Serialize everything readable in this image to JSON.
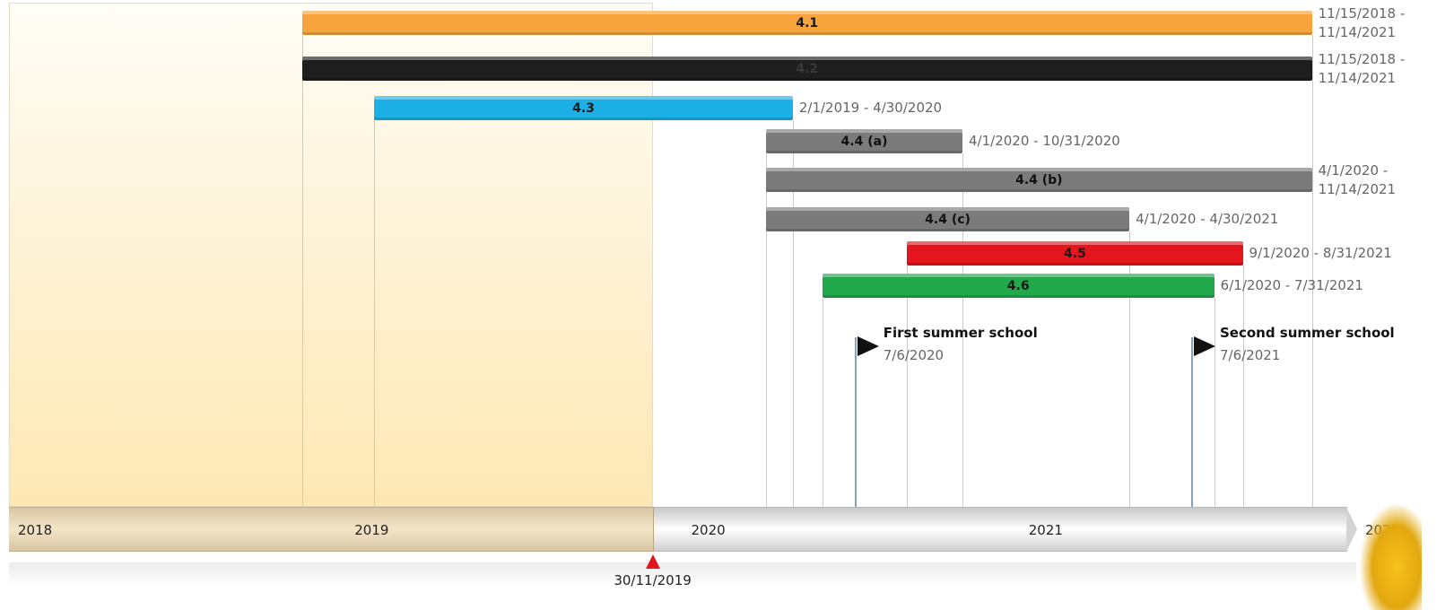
{
  "chart_data": {
    "type": "gantt",
    "xlim": [
      "1/1/2018",
      "1/1/2022"
    ],
    "xticks": [
      {
        "value": "1/1/2018",
        "label": "2018"
      },
      {
        "value": "1/1/2019",
        "label": "2019"
      },
      {
        "value": "1/1/2020",
        "label": "2020"
      },
      {
        "value": "1/1/2021",
        "label": "2021"
      },
      {
        "value": "1/1/2022",
        "label": "2022"
      }
    ],
    "tasks": [
      {
        "name": "4.1",
        "start": "11/15/2018",
        "end": "11/14/2021",
        "label": "11/15/2018 - 11/14/2021",
        "color": "#f8a43c",
        "text_color": "#1a1a1a"
      },
      {
        "name": "4.2",
        "start": "11/15/2018",
        "end": "11/14/2021",
        "label": "11/15/2018 - 11/14/2021",
        "color": "#1e1e1e",
        "text_color": "#3a3a3a"
      },
      {
        "name": "4.3",
        "start": "2/1/2019",
        "end": "4/30/2020",
        "label": "2/1/2019 - 4/30/2020",
        "color": "#1cb0e6",
        "text_color": "#1a1a1a"
      },
      {
        "name": "4.4 (a)",
        "start": "4/1/2020",
        "end": "10/31/2020",
        "label": "4/1/2020 - 10/31/2020",
        "color": "#7b7b7b",
        "text_color": "#111111"
      },
      {
        "name": "4.4 (b)",
        "start": "4/1/2020",
        "end": "11/14/2021",
        "label": "4/1/2020 - 11/14/2021",
        "color": "#7b7b7b",
        "text_color": "#111111"
      },
      {
        "name": "4.4 (c)",
        "start": "4/1/2020",
        "end": "4/30/2021",
        "label": "4/1/2020 - 4/30/2021",
        "color": "#7b7b7b",
        "text_color": "#111111"
      },
      {
        "name": "4.5",
        "start": "9/1/2020",
        "end": "8/31/2021",
        "label": "9/1/2020 - 8/31/2021",
        "color": "#e3161d",
        "text_color": "#1a1a1a"
      },
      {
        "name": "4.6",
        "start": "6/1/2020",
        "end": "7/31/2021",
        "label": "6/1/2020 - 7/31/2021",
        "color": "#20a84a",
        "text_color": "#1a1a1a"
      }
    ],
    "milestones": [
      {
        "name": "First summer school",
        "date": "7/6/2020",
        "label": "7/6/2020"
      },
      {
        "name": "Second summer school",
        "date": "7/6/2021",
        "label": "7/6/2021"
      }
    ],
    "today": {
      "date": "11/30/2019",
      "label": "30/11/2019",
      "color": "#e3161d"
    }
  }
}
